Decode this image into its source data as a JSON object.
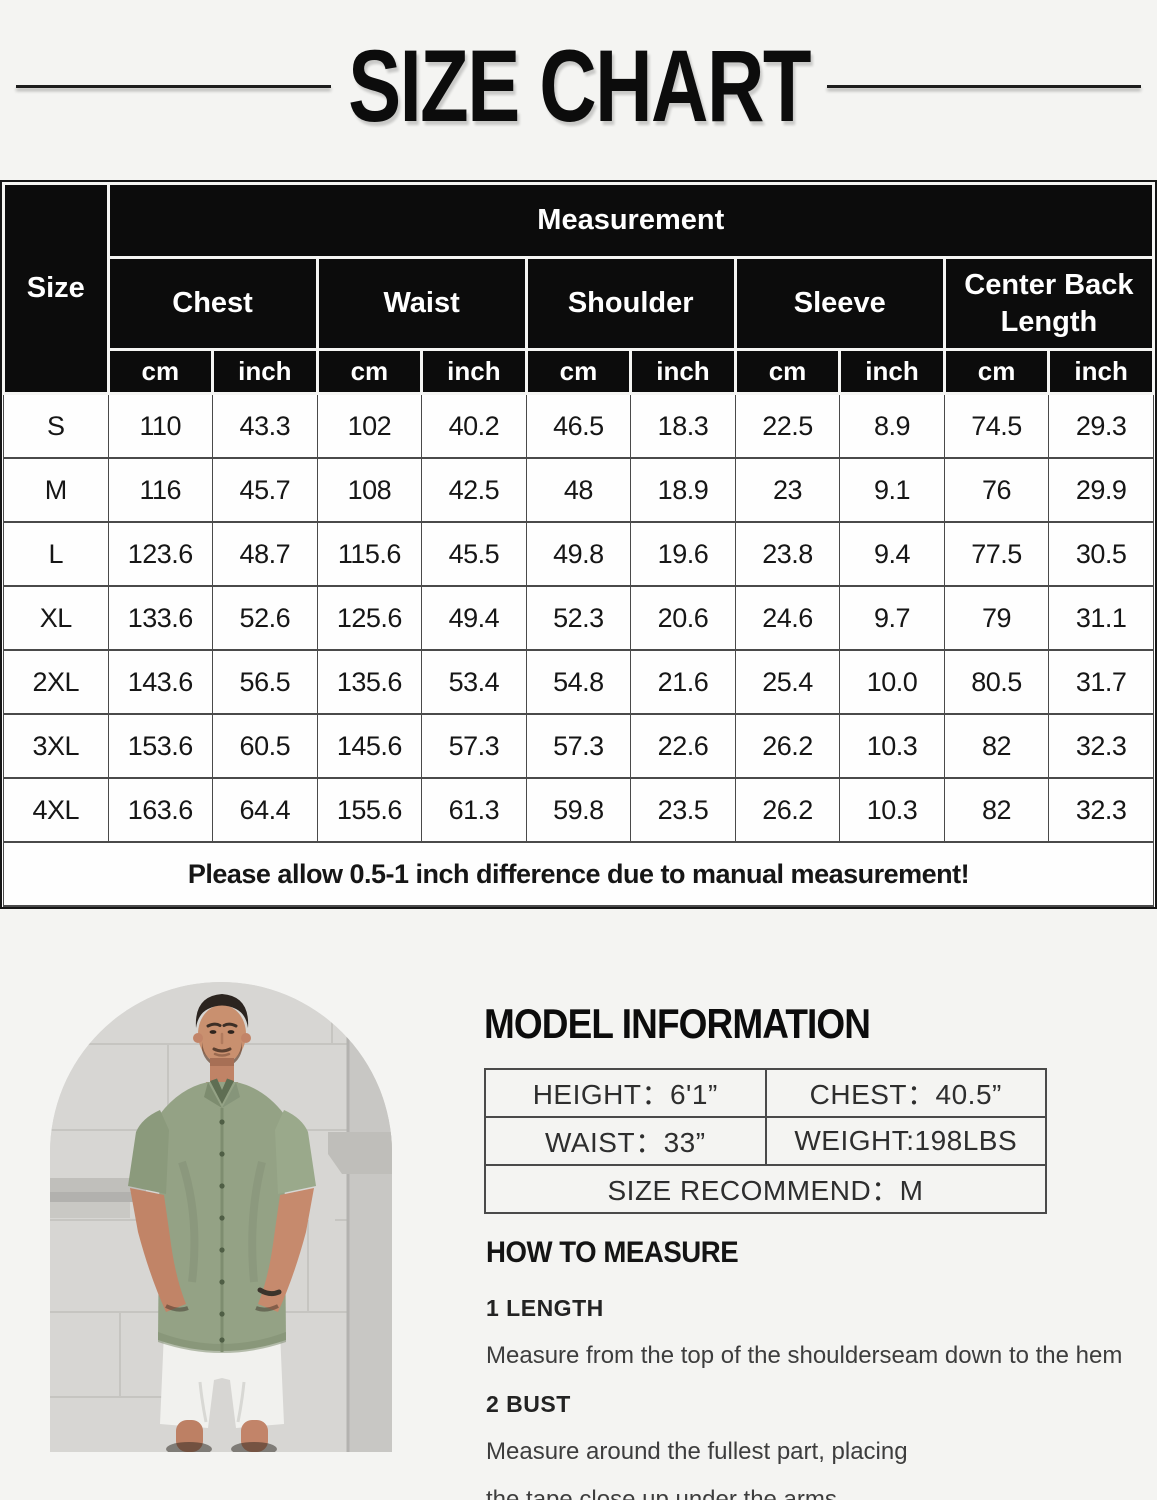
{
  "title": "SIZE CHART",
  "colors": {
    "page_bg": "#f4f4f2",
    "header_bg": "#0c0c0c",
    "header_text": "#ffffff",
    "shirt_green": "#94a285",
    "wall_gray": "#d7d6d3"
  },
  "size_table": {
    "corner_label": "Size",
    "measurement_label": "Measurement",
    "groups": [
      "Chest",
      "Waist",
      "Shoulder",
      "Sleeve",
      "Center Back Length"
    ],
    "unit_labels": [
      "cm",
      "inch"
    ],
    "rows": [
      {
        "size": "S",
        "values": [
          "110",
          "43.3",
          "102",
          "40.2",
          "46.5",
          "18.3",
          "22.5",
          "8.9",
          "74.5",
          "29.3"
        ]
      },
      {
        "size": "M",
        "values": [
          "116",
          "45.7",
          "108",
          "42.5",
          "48",
          "18.9",
          "23",
          "9.1",
          "76",
          "29.9"
        ]
      },
      {
        "size": "L",
        "values": [
          "123.6",
          "48.7",
          "115.6",
          "45.5",
          "49.8",
          "19.6",
          "23.8",
          "9.4",
          "77.5",
          "30.5"
        ]
      },
      {
        "size": "XL",
        "values": [
          "133.6",
          "52.6",
          "125.6",
          "49.4",
          "52.3",
          "20.6",
          "24.6",
          "9.7",
          "79",
          "31.1"
        ]
      },
      {
        "size": "2XL",
        "values": [
          "143.6",
          "56.5",
          "135.6",
          "53.4",
          "54.8",
          "21.6",
          "25.4",
          "10.0",
          "80.5",
          "31.7"
        ]
      },
      {
        "size": "3XL",
        "values": [
          "153.6",
          "60.5",
          "145.6",
          "57.3",
          "57.3",
          "22.6",
          "26.2",
          "10.3",
          "82",
          "32.3"
        ]
      },
      {
        "size": "4XL",
        "values": [
          "163.6",
          "64.4",
          "155.6",
          "61.3",
          "59.8",
          "23.5",
          "26.2",
          "10.3",
          "82",
          "32.3"
        ]
      }
    ],
    "note": "Please allow 0.5-1 inch difference due to manual measurement!"
  },
  "model_info": {
    "heading": "MODEL INFORMATION",
    "height": "HEIGHT：6'1”",
    "chest": "CHEST：40.5”",
    "waist": "WAIST：33”",
    "weight": "WEIGHT:198LBS",
    "recommend": "SIZE RECOMMEND：M"
  },
  "how_to_measure": {
    "heading": "HOW TO MEASURE",
    "step1_label": "1 LENGTH",
    "step1_line1": "Measure from the top of the shoulderseam down to the hem",
    "step2_label": "2 BUST",
    "step2_line1": "Measure around the fullest part, placing",
    "step2_line2": "the tape close up under the arms"
  },
  "chart_data": {
    "type": "table",
    "title": "SIZE CHART",
    "columns": [
      "Size",
      "Chest cm",
      "Chest inch",
      "Waist cm",
      "Waist inch",
      "Shoulder cm",
      "Shoulder inch",
      "Sleeve cm",
      "Sleeve inch",
      "Center Back Length cm",
      "Center Back Length inch"
    ],
    "rows": [
      [
        "S",
        110,
        43.3,
        102,
        40.2,
        46.5,
        18.3,
        22.5,
        8.9,
        74.5,
        29.3
      ],
      [
        "M",
        116,
        45.7,
        108,
        42.5,
        48,
        18.9,
        23,
        9.1,
        76,
        29.9
      ],
      [
        "L",
        123.6,
        48.7,
        115.6,
        45.5,
        49.8,
        19.6,
        23.8,
        9.4,
        77.5,
        30.5
      ],
      [
        "XL",
        133.6,
        52.6,
        125.6,
        49.4,
        52.3,
        20.6,
        24.6,
        9.7,
        79,
        31.1
      ],
      [
        "2XL",
        143.6,
        56.5,
        135.6,
        53.4,
        54.8,
        21.6,
        25.4,
        10.0,
        80.5,
        31.7
      ],
      [
        "3XL",
        153.6,
        60.5,
        145.6,
        57.3,
        57.3,
        22.6,
        26.2,
        10.3,
        82,
        32.3
      ],
      [
        "4XL",
        163.6,
        64.4,
        155.6,
        61.3,
        59.8,
        23.5,
        26.2,
        10.3,
        82,
        32.3
      ]
    ]
  }
}
